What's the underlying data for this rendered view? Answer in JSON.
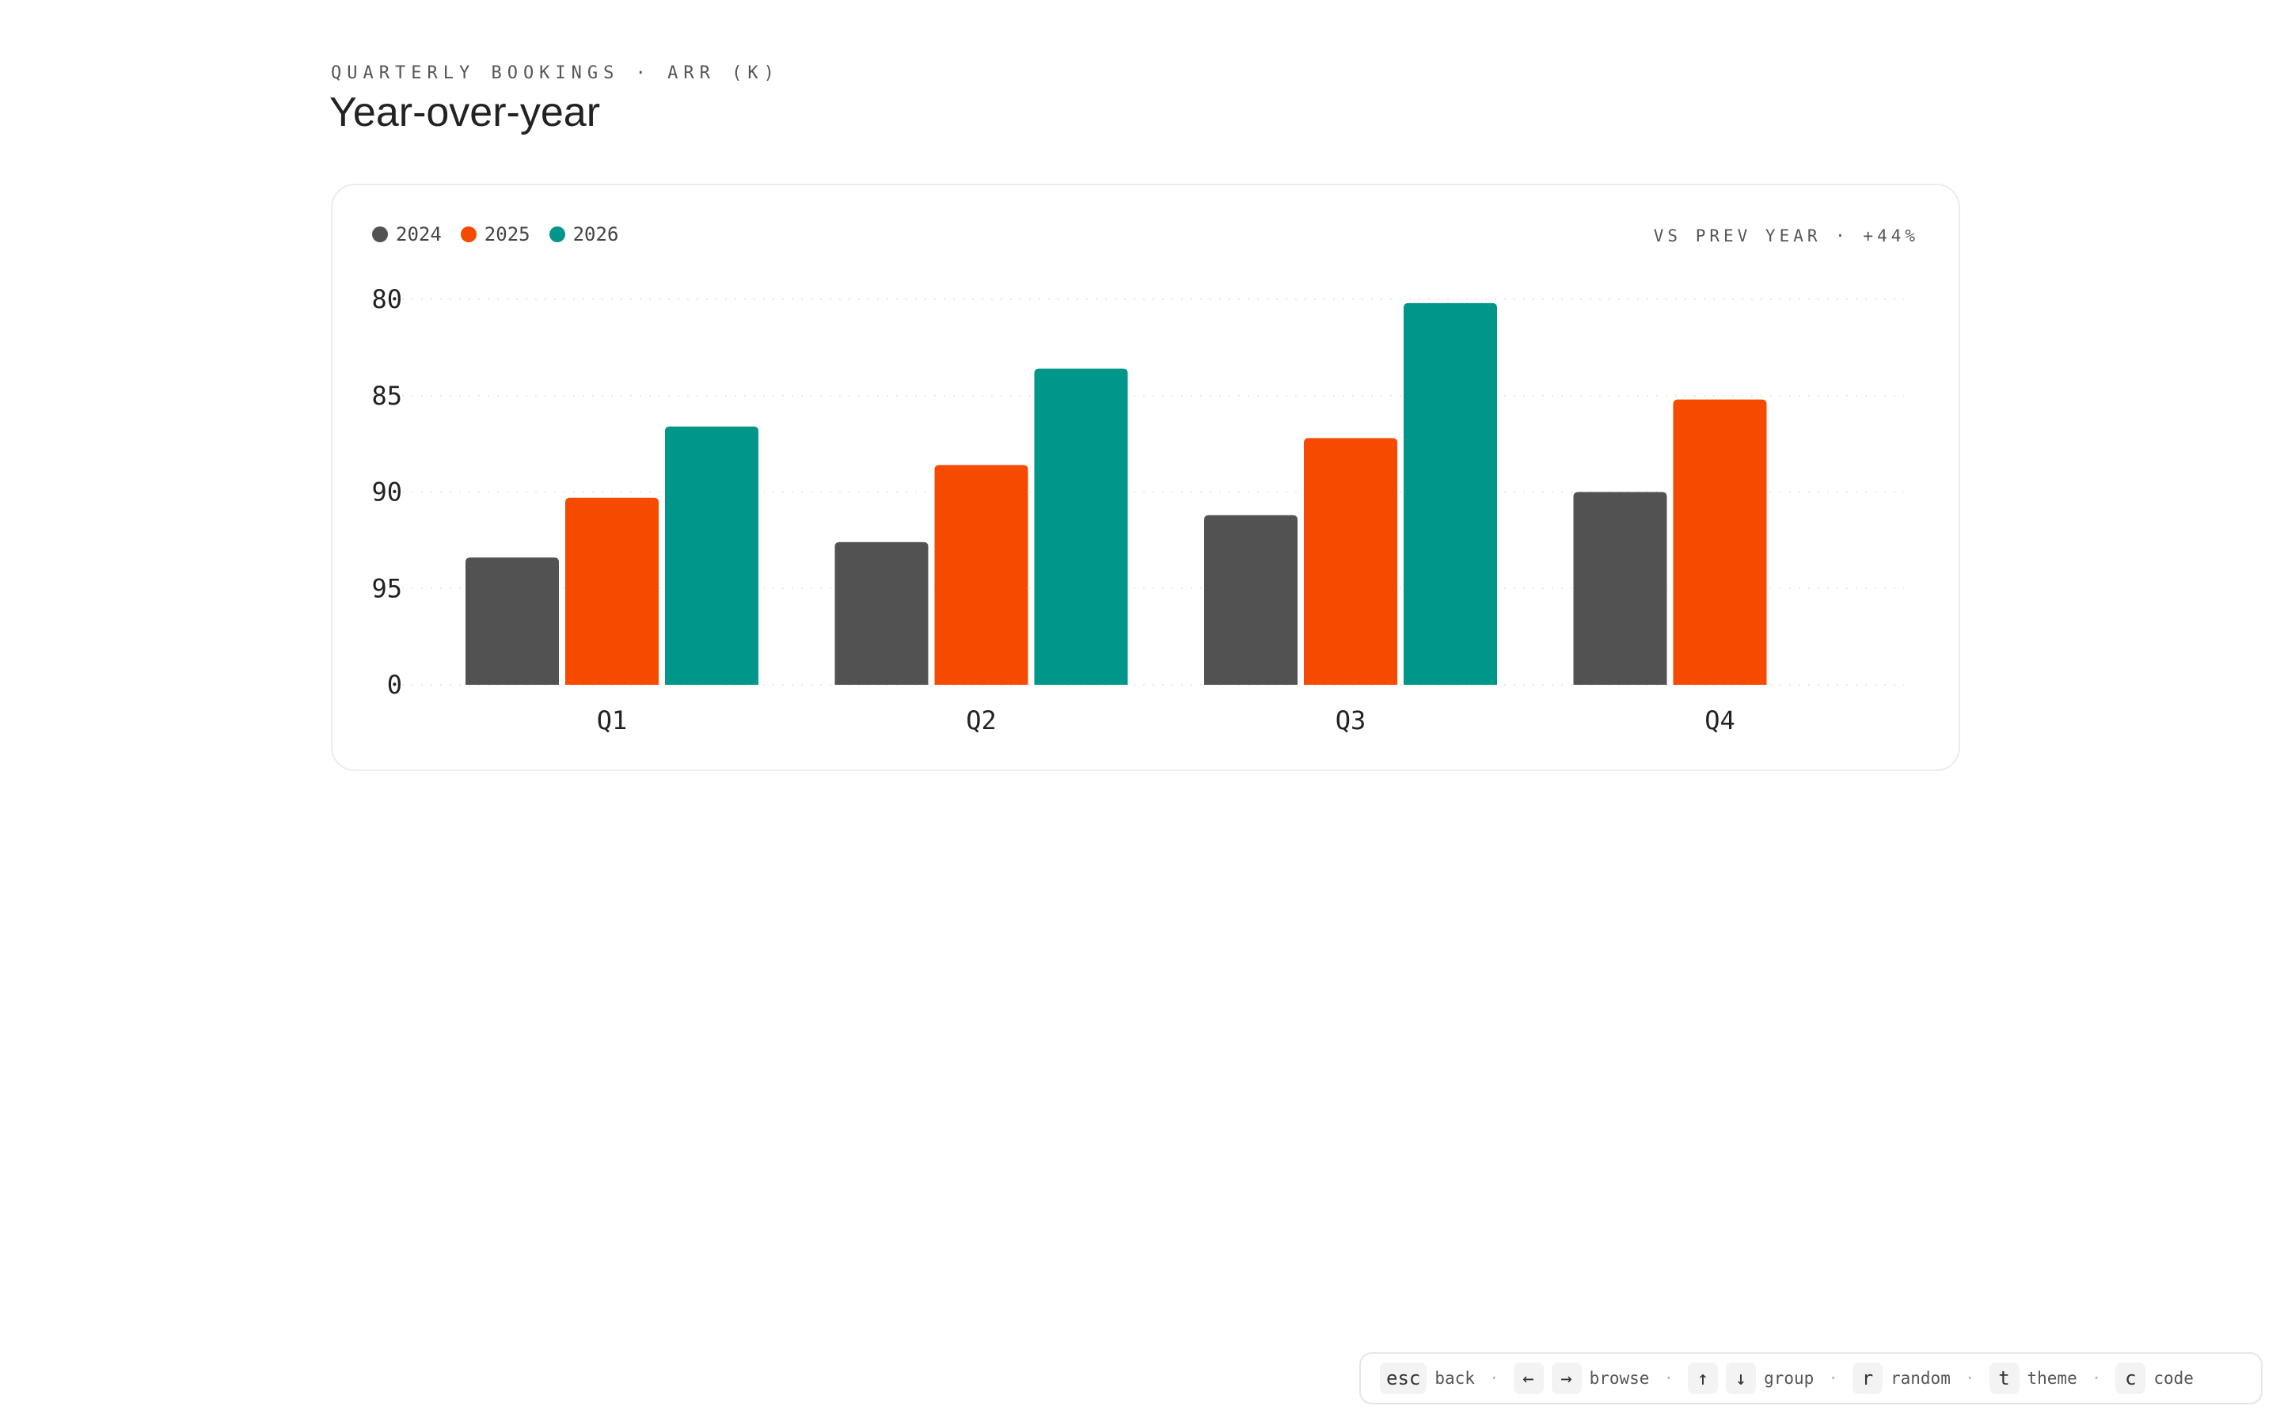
{
  "header": {
    "eyebrow": "QUARTERLY BOOKINGS · ARR (K)",
    "title": "Year-over-year"
  },
  "card": {
    "comparison": "VS PREV YEAR · +44%"
  },
  "chart_data": {
    "type": "bar",
    "categories": [
      "Q1",
      "Q2",
      "Q3",
      "Q4"
    ],
    "series": [
      {
        "name": "2024",
        "color": "#525252",
        "values": [
          33,
          37,
          44,
          50
        ]
      },
      {
        "name": "2025",
        "color": "#f54a00",
        "values": [
          48.5,
          57,
          64,
          74
        ]
      },
      {
        "name": "2026",
        "color": "#009689",
        "values": [
          67,
          82,
          99,
          null
        ]
      }
    ],
    "ylim": [
      0,
      100
    ],
    "ytick_labels": [
      "80",
      "85",
      "90",
      "95",
      "0"
    ],
    "grid": true,
    "legend": "top-left"
  },
  "footer": {
    "items": [
      {
        "keys": [
          "esc"
        ],
        "label": "back"
      },
      {
        "keys": [
          "←",
          "→"
        ],
        "label": "browse"
      },
      {
        "keys": [
          "↑",
          "↓"
        ],
        "label": "group"
      },
      {
        "keys": [
          "r"
        ],
        "label": "random"
      },
      {
        "keys": [
          "t"
        ],
        "label": "theme"
      },
      {
        "keys": [
          "c"
        ],
        "label": "code"
      }
    ],
    "separator": "·"
  }
}
